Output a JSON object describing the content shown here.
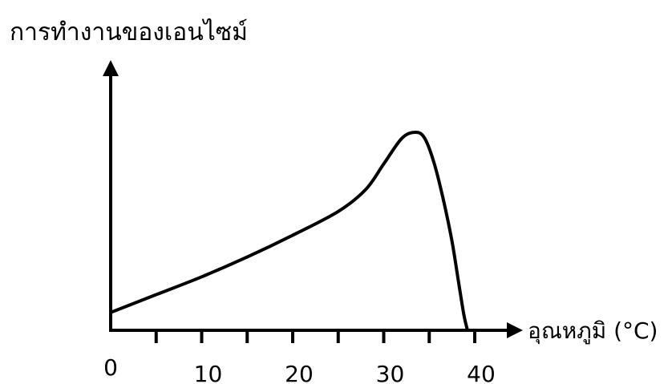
{
  "chart_data": {
    "type": "line",
    "title": "",
    "xlabel": "อุณหภูมิ (°C)",
    "ylabel": "การทำงานของเอนไซม์",
    "xlim": [
      0,
      40
    ],
    "ylim": [
      0,
      1
    ],
    "x_ticks": [
      0,
      10,
      20,
      30,
      40
    ],
    "x_minor_ticks": [
      5,
      15,
      25,
      35
    ],
    "grid": false,
    "legend": "none",
    "y_tick_labels": false,
    "series": [
      {
        "x": [
          0,
          5,
          10,
          15,
          20,
          25,
          28,
          30,
          32,
          33.5,
          34.5,
          35.5,
          36.5,
          37.5,
          38.2,
          38.8,
          39.2
        ],
        "y": [
          0.09,
          0.18,
          0.27,
          0.37,
          0.48,
          0.6,
          0.71,
          0.84,
          0.97,
          1.0,
          0.97,
          0.85,
          0.67,
          0.45,
          0.25,
          0.08,
          0.0
        ]
      }
    ],
    "colors": {
      "line": "#000000",
      "axis": "#000000"
    }
  }
}
